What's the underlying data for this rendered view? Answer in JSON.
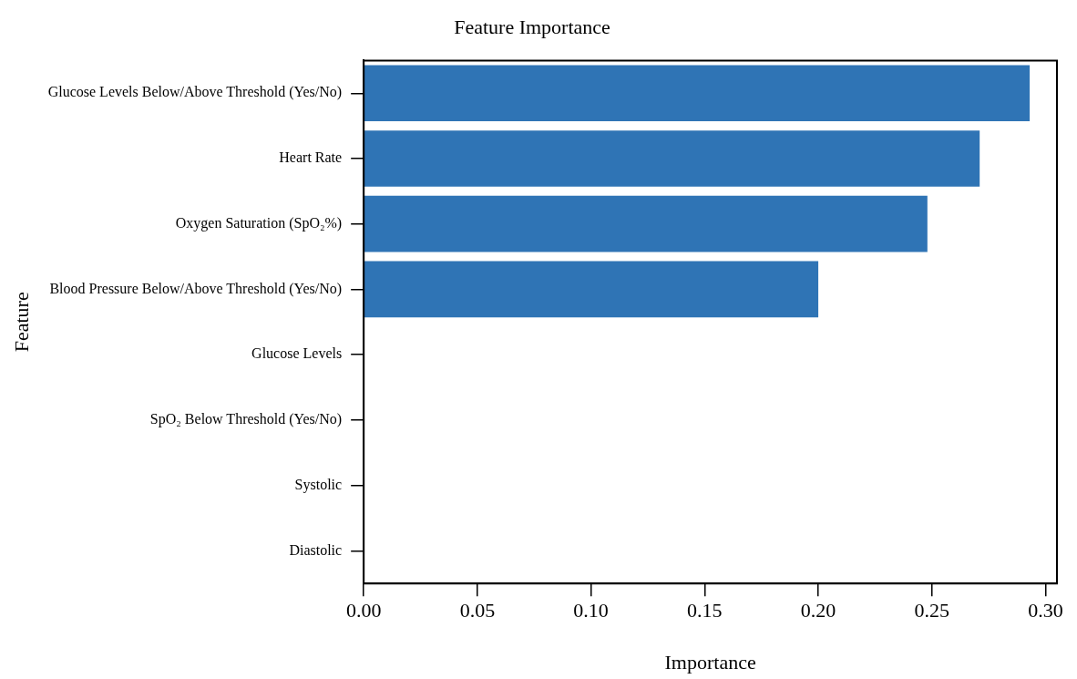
{
  "chart_data": {
    "type": "bar",
    "orientation": "horizontal",
    "title": "Feature Importance",
    "xlabel": "Importance",
    "ylabel": "Feature",
    "categories": [
      "Glucose Levels Below/Above Threshold (Yes/No)",
      "Heart Rate",
      "Oxygen Saturation (SpO₂%)",
      "Blood Pressure Below/Above Threshold (Yes/No)",
      "Glucose Levels",
      "SpO₂ Below Threshold (Yes/No)",
      "Systolic",
      "Diastolic"
    ],
    "values": [
      0.293,
      0.271,
      0.248,
      0.2,
      0,
      0,
      0,
      0
    ],
    "color": "#2f74b5",
    "xlim": [
      0,
      0.305
    ],
    "xticks": [
      {
        "value": 0,
        "label": "0.00"
      },
      {
        "value": 0.05,
        "label": "0.05"
      },
      {
        "value": 0.1,
        "label": "0.10"
      },
      {
        "value": 0.15,
        "label": "0.15"
      },
      {
        "value": 0.2,
        "label": "0.20"
      },
      {
        "value": 0.25,
        "label": "0.25"
      },
      {
        "value": 0.3,
        "label": "0.30"
      }
    ]
  }
}
